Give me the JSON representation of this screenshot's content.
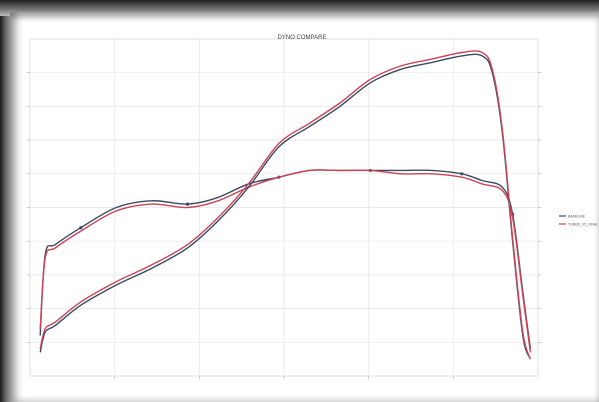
{
  "chart_data": {
    "type": "line",
    "title": "DYNO COMPARE",
    "x_range": [
      0,
      100
    ],
    "y_left_range": [
      0,
      100
    ],
    "y_right_range": [
      0,
      100
    ],
    "grid": true,
    "legend_placement": "right",
    "series": [
      {
        "name": "BASELINE",
        "axis": "left",
        "color": "#3a4a66",
        "points": [
          [
            2,
            12
          ],
          [
            3,
            36
          ],
          [
            5,
            39
          ],
          [
            10,
            44
          ],
          [
            17,
            50
          ],
          [
            24,
            52
          ],
          [
            31,
            51
          ],
          [
            37,
            53
          ],
          [
            43,
            57
          ],
          [
            49,
            59
          ],
          [
            55,
            61
          ],
          [
            61,
            61
          ],
          [
            67,
            61
          ],
          [
            73,
            61
          ],
          [
            79,
            61
          ],
          [
            85,
            60
          ],
          [
            89,
            58
          ],
          [
            93,
            56
          ],
          [
            95,
            48
          ],
          [
            97,
            25
          ],
          [
            98.5,
            8
          ]
        ]
      },
      {
        "name": "TUNED_V2_FINAL",
        "axis": "left",
        "color": "#cc4455",
        "points": [
          [
            2,
            14
          ],
          [
            3,
            35
          ],
          [
            5,
            38
          ],
          [
            10,
            43
          ],
          [
            17,
            49
          ],
          [
            24,
            51
          ],
          [
            31,
            50
          ],
          [
            37,
            52
          ],
          [
            43,
            56
          ],
          [
            49,
            59
          ],
          [
            55,
            61
          ],
          [
            61,
            61
          ],
          [
            67,
            61
          ],
          [
            73,
            60
          ],
          [
            79,
            60
          ],
          [
            85,
            59
          ],
          [
            89,
            57
          ],
          [
            93,
            55
          ],
          [
            95,
            47
          ],
          [
            97,
            24
          ],
          [
            98.5,
            7
          ]
        ]
      },
      {
        "name": "BASELINE",
        "axis": "right",
        "color": "#3a4a66",
        "points": [
          [
            2,
            7
          ],
          [
            3,
            13
          ],
          [
            5,
            15
          ],
          [
            10,
            21
          ],
          [
            17,
            27
          ],
          [
            24,
            32
          ],
          [
            31,
            38
          ],
          [
            37,
            46
          ],
          [
            43,
            56
          ],
          [
            49,
            68
          ],
          [
            55,
            74
          ],
          [
            61,
            80
          ],
          [
            67,
            87
          ],
          [
            73,
            91
          ],
          [
            79,
            93
          ],
          [
            85,
            95
          ],
          [
            89,
            95
          ],
          [
            91,
            90
          ],
          [
            93,
            72
          ],
          [
            95,
            40
          ],
          [
            97,
            12
          ],
          [
            98.5,
            5
          ]
        ]
      },
      {
        "name": "TUNED_V2_FINAL",
        "axis": "right",
        "color": "#cc4455",
        "points": [
          [
            2,
            8
          ],
          [
            3,
            14
          ],
          [
            5,
            16
          ],
          [
            10,
            22
          ],
          [
            17,
            28
          ],
          [
            24,
            33
          ],
          [
            31,
            39
          ],
          [
            37,
            47
          ],
          [
            43,
            57
          ],
          [
            49,
            69
          ],
          [
            55,
            75
          ],
          [
            61,
            81
          ],
          [
            67,
            88
          ],
          [
            73,
            92
          ],
          [
            79,
            94
          ],
          [
            85,
            96
          ],
          [
            89,
            96
          ],
          [
            91,
            91
          ],
          [
            93,
            73
          ],
          [
            95,
            41
          ],
          [
            97,
            13
          ],
          [
            98.5,
            5
          ]
        ]
      }
    ],
    "legend": [
      "BASELINE",
      "TUNED_V2_FINAL"
    ]
  }
}
